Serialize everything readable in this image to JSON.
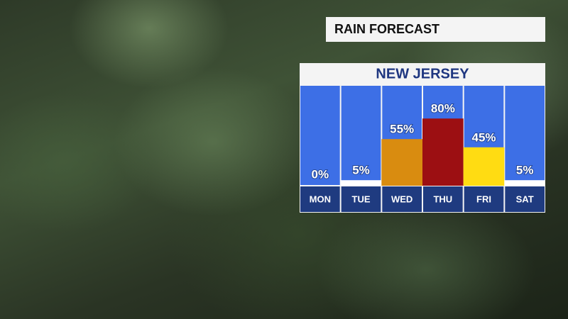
{
  "chart_data": {
    "type": "bar",
    "title": "RAIN FORECAST",
    "subtitle": "NEW JERSEY",
    "categories": [
      "MON",
      "TUE",
      "WED",
      "THU",
      "FRI",
      "SAT"
    ],
    "values": [
      0,
      5,
      55,
      80,
      45,
      5
    ],
    "value_labels": [
      "0%",
      "5%",
      "55%",
      "80%",
      "45%",
      "5%"
    ],
    "colors": [
      "#ffffff",
      "#ffffff",
      "#d98c10",
      "#9c0f12",
      "#ffdc12",
      "#ffffff"
    ],
    "ylim": [
      0,
      100
    ]
  }
}
